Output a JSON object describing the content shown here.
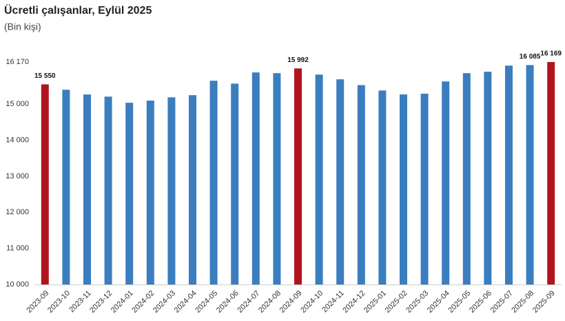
{
  "chart_data": {
    "type": "bar",
    "title": "Ücretli çalışanlar, Eylül 2025",
    "subtitle": "(Bin kişi)",
    "categories": [
      "2023-09",
      "2023-10",
      "2023-11",
      "2023-12",
      "2024-01",
      "2024-02",
      "2024-03",
      "2024-04",
      "2024-05",
      "2024-06",
      "2024-07",
      "2024-08",
      "2024-09",
      "2024-10",
      "2024-11",
      "2024-12",
      "2025-01",
      "2025-02",
      "2025-03",
      "2025-04",
      "2025-05",
      "2025-06",
      "2025-07",
      "2025-08",
      "2025-09"
    ],
    "values": [
      15550,
      15400,
      15270,
      15210,
      15040,
      15100,
      15190,
      15250,
      15650,
      15570,
      15880,
      15860,
      15992,
      15820,
      15690,
      15530,
      15380,
      15270,
      15290,
      15630,
      15860,
      15900,
      16070,
      16085,
      16169
    ],
    "value_labels": [
      "15 550",
      null,
      null,
      null,
      null,
      null,
      null,
      null,
      null,
      null,
      null,
      null,
      "15 992",
      null,
      null,
      null,
      null,
      null,
      null,
      null,
      null,
      null,
      null,
      "16 085",
      "16 169"
    ],
    "colors": [
      "#b0151f",
      "#3a7ebf",
      "#3a7ebf",
      "#3a7ebf",
      "#3a7ebf",
      "#3a7ebf",
      "#3a7ebf",
      "#3a7ebf",
      "#3a7ebf",
      "#3a7ebf",
      "#3a7ebf",
      "#3a7ebf",
      "#b0151f",
      "#3a7ebf",
      "#3a7ebf",
      "#3a7ebf",
      "#3a7ebf",
      "#3a7ebf",
      "#3a7ebf",
      "#3a7ebf",
      "#3a7ebf",
      "#3a7ebf",
      "#3a7ebf",
      "#3a7ebf",
      "#b0151f"
    ],
    "ylim": [
      10000,
      16170
    ],
    "yticks": [
      {
        "value": 10000,
        "label": "10 000"
      },
      {
        "value": 11000,
        "label": "11 000"
      },
      {
        "value": 12000,
        "label": "12 000"
      },
      {
        "value": 13000,
        "label": "13 000"
      },
      {
        "value": 14000,
        "label": "14 000"
      },
      {
        "value": 15000,
        "label": "15 000"
      },
      {
        "value": 16170,
        "label": "16 170"
      }
    ],
    "grid": false
  }
}
